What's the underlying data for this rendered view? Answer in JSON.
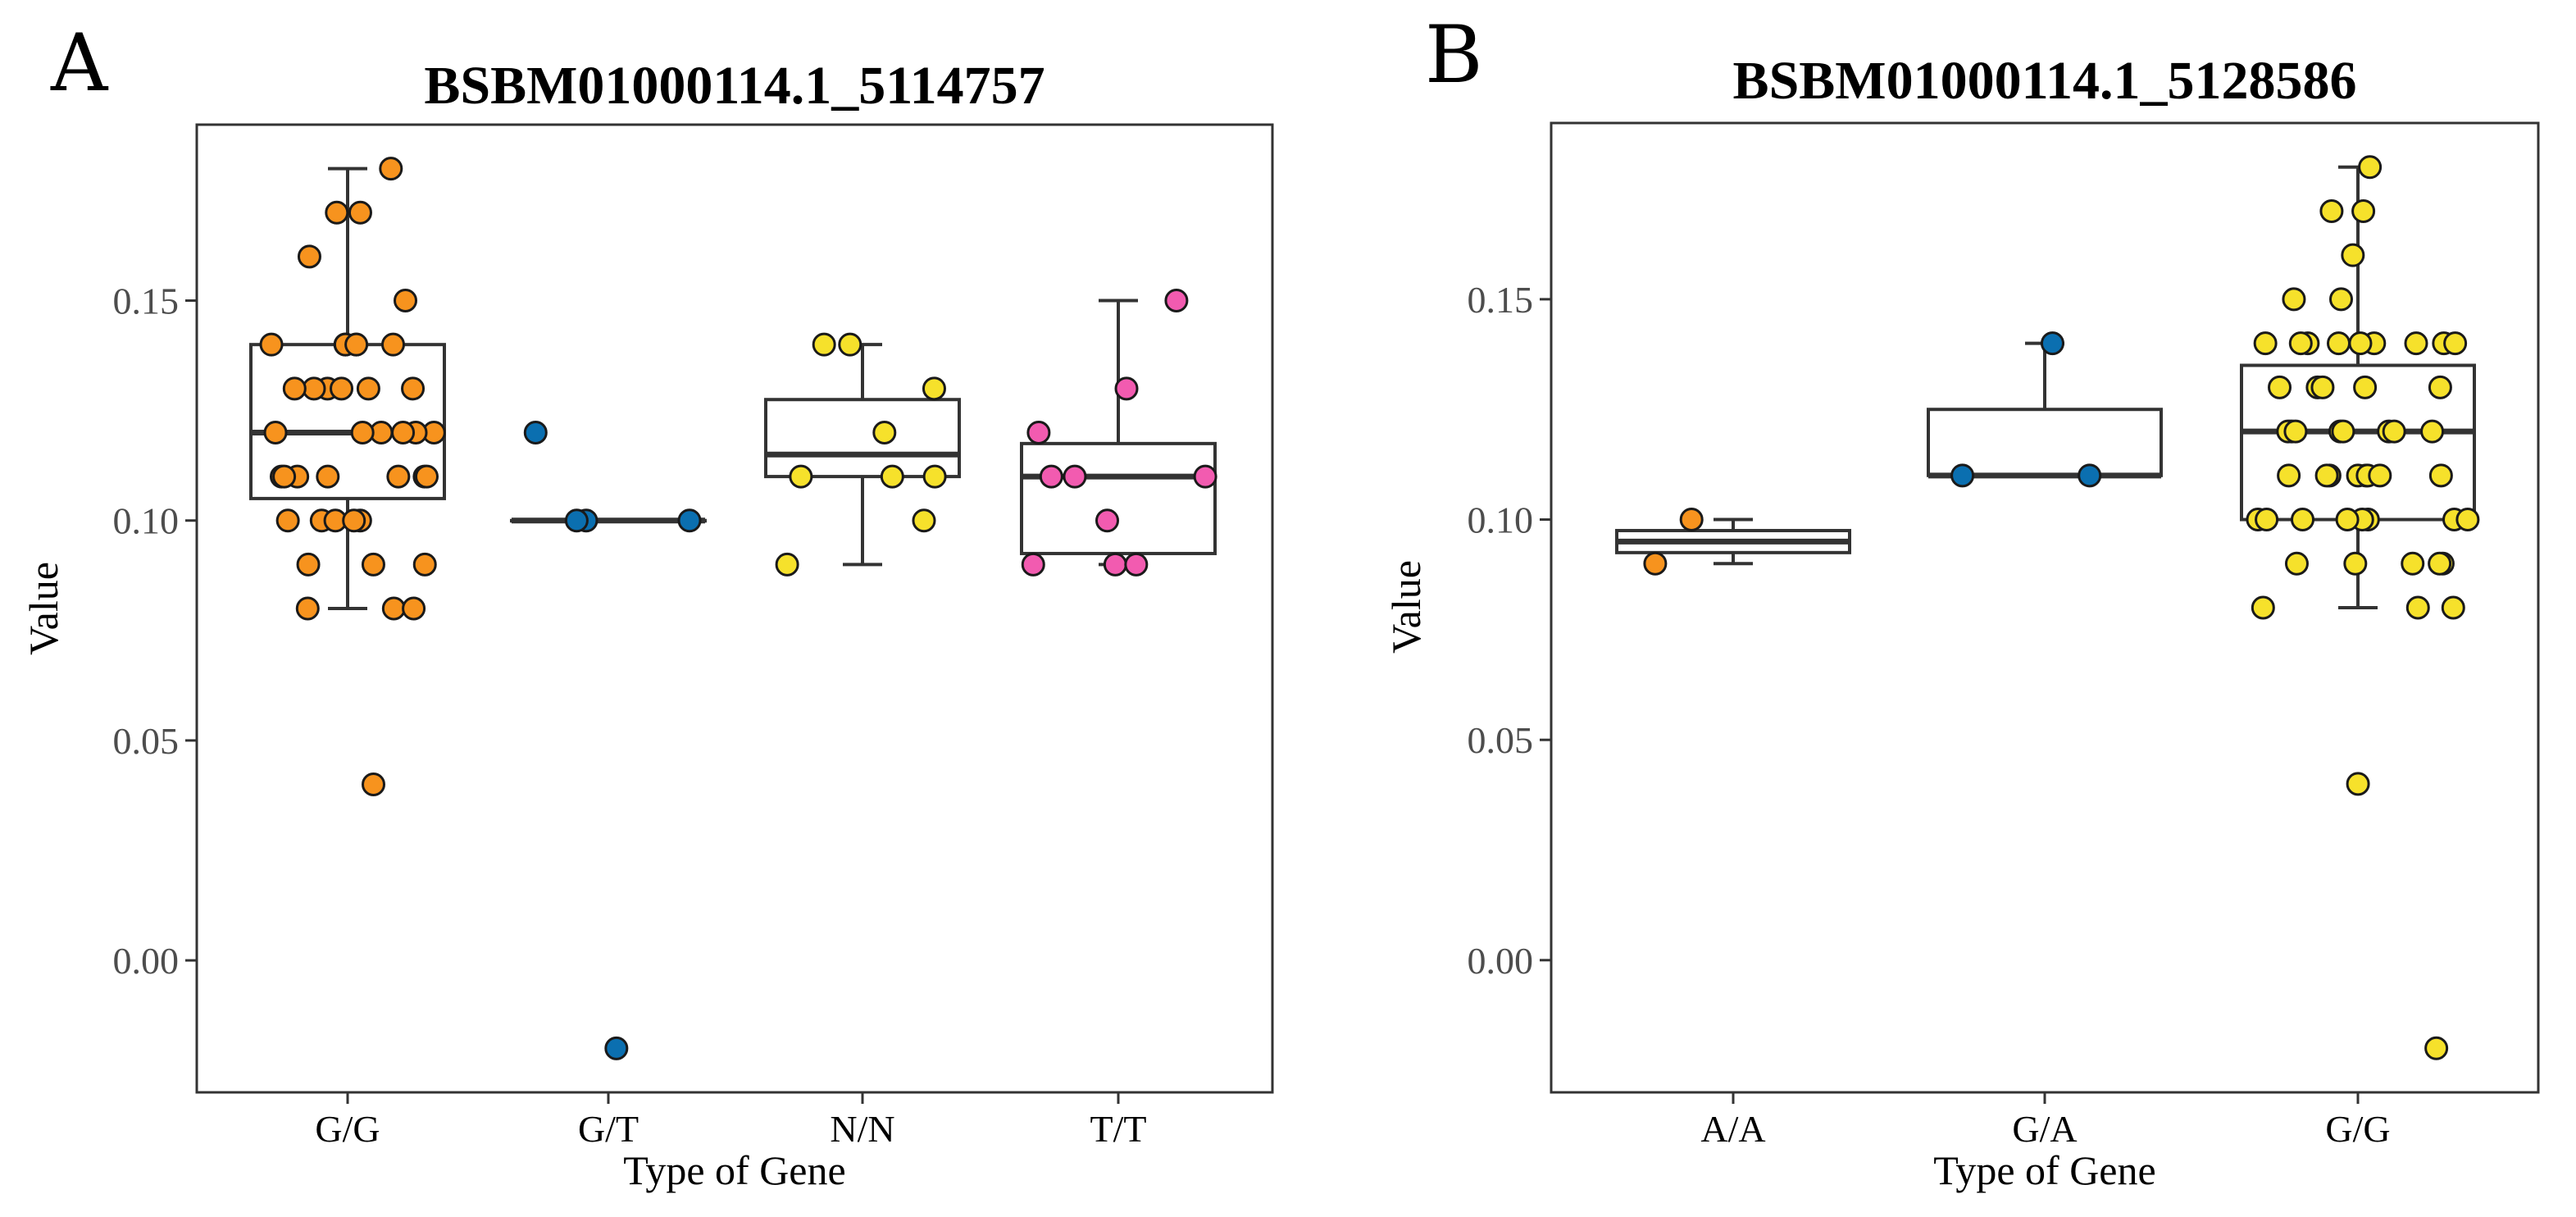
{
  "chart_data": [
    {
      "type": "box",
      "panel_label": "A",
      "title": "BSBM01000114.1_5114757",
      "xlabel": "Type of Gene",
      "ylabel": "Value",
      "ylim": [
        -0.03,
        0.19
      ],
      "yticks": [
        0.0,
        0.05,
        0.1,
        0.15
      ],
      "ytick_labels": [
        "0.00",
        "0.05",
        "0.10",
        "0.15"
      ],
      "categories": [
        "G/G",
        "G/T",
        "N/N",
        "T/T"
      ],
      "colors": [
        "#F7931E",
        "#0B6FB0",
        "#F6E12B",
        "#F25BB0"
      ],
      "boxes": [
        {
          "q1": 0.105,
          "median": 0.12,
          "q3": 0.14,
          "whisker_low": 0.08,
          "whisker_high": 0.18
        },
        {
          "q1": 0.1,
          "median": 0.1,
          "q3": 0.1,
          "whisker_low": 0.1,
          "whisker_high": 0.1
        },
        {
          "q1": 0.11,
          "median": 0.115,
          "q3": 0.1275,
          "whisker_low": 0.09,
          "whisker_high": 0.14
        },
        {
          "q1": 0.0925,
          "median": 0.11,
          "q3": 0.1175,
          "whisker_low": 0.09,
          "whisker_high": 0.15
        }
      ],
      "points": [
        [
          0.18,
          0.17,
          0.17,
          0.16,
          0.15,
          0.14,
          0.14,
          0.14,
          0.14,
          0.14,
          0.14,
          0.13,
          0.13,
          0.13,
          0.13,
          0.13,
          0.13,
          0.12,
          0.12,
          0.12,
          0.12,
          0.12,
          0.12,
          0.11,
          0.11,
          0.11,
          0.11,
          0.11,
          0.11,
          0.11,
          0.1,
          0.1,
          0.1,
          0.1,
          0.1,
          0.09,
          0.09,
          0.09,
          0.08,
          0.08,
          0.08,
          0.04
        ],
        [
          0.12,
          0.1,
          0.1,
          0.1,
          -0.02
        ],
        [
          0.14,
          0.14,
          0.13,
          0.12,
          0.11,
          0.11,
          0.11,
          0.1,
          0.09
        ],
        [
          0.15,
          0.13,
          0.12,
          0.11,
          0.11,
          0.11,
          0.1,
          0.09,
          0.09,
          0.09
        ]
      ]
    },
    {
      "type": "box",
      "panel_label": "B",
      "title": "BSBM01000114.1_5128586",
      "xlabel": "Type of Gene",
      "ylabel": "Value",
      "ylim": [
        -0.03,
        0.19
      ],
      "yticks": [
        0.0,
        0.05,
        0.1,
        0.15
      ],
      "ytick_labels": [
        "0.00",
        "0.05",
        "0.10",
        "0.15"
      ],
      "categories": [
        "A/A",
        "G/A",
        "G/G"
      ],
      "colors": [
        "#F7931E",
        "#0B6FB0",
        "#F6E12B"
      ],
      "boxes": [
        {
          "q1": 0.0925,
          "median": 0.095,
          "q3": 0.0975,
          "whisker_low": 0.09,
          "whisker_high": 0.1
        },
        {
          "q1": 0.11,
          "median": 0.11,
          "q3": 0.125,
          "whisker_low": 0.11,
          "whisker_high": 0.14
        },
        {
          "q1": 0.1,
          "median": 0.12,
          "q3": 0.135,
          "whisker_low": 0.08,
          "whisker_high": 0.18
        }
      ],
      "points": [
        [
          0.1,
          0.09
        ],
        [
          0.14,
          0.11,
          0.11
        ],
        [
          0.18,
          0.17,
          0.17,
          0.16,
          0.15,
          0.15,
          0.14,
          0.14,
          0.14,
          0.14,
          0.14,
          0.14,
          0.14,
          0.14,
          0.14,
          0.13,
          0.13,
          0.13,
          0.13,
          0.13,
          0.12,
          0.12,
          0.12,
          0.12,
          0.12,
          0.12,
          0.12,
          0.12,
          0.11,
          0.11,
          0.11,
          0.11,
          0.11,
          0.11,
          0.11,
          0.11,
          0.1,
          0.1,
          0.1,
          0.1,
          0.1,
          0.1,
          0.1,
          0.1,
          0.09,
          0.09,
          0.09,
          0.09,
          0.09,
          0.08,
          0.08,
          0.08,
          0.04,
          -0.02
        ]
      ]
    }
  ]
}
